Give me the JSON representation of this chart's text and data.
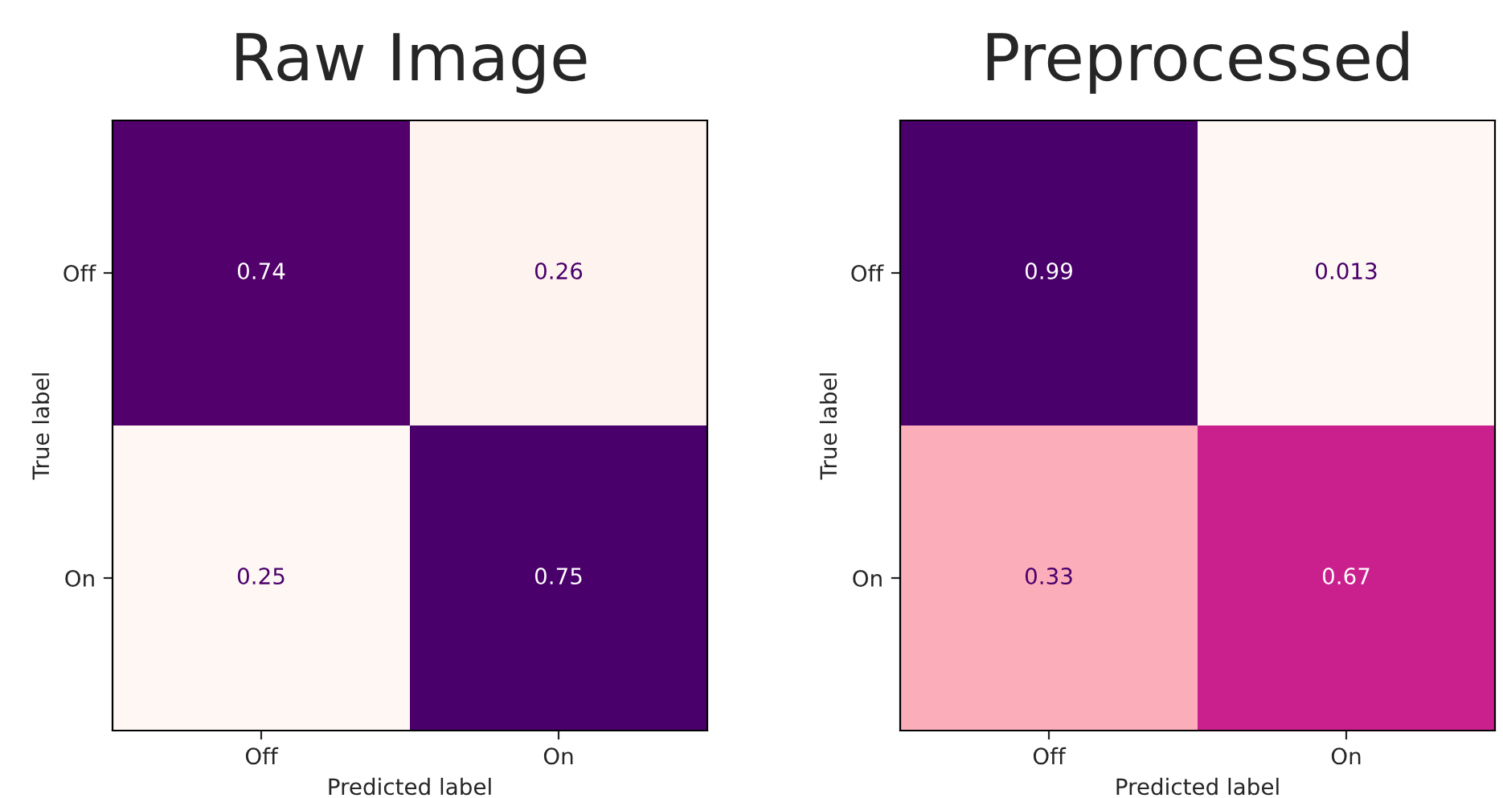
{
  "chart_data": [
    {
      "type": "heatmap",
      "title": "Raw Image",
      "xlabel": "Predicted label",
      "ylabel": "True label",
      "categories": [
        "Off",
        "On"
      ],
      "y_categories": [
        "Off",
        "On"
      ],
      "cells": [
        [
          0.74,
          0.26
        ],
        [
          0.25,
          0.75
        ]
      ],
      "data_labels": true
    },
    {
      "type": "heatmap",
      "title": "Preprocessed",
      "xlabel": "Predicted label",
      "ylabel": "True label",
      "categories": [
        "Off",
        "On"
      ],
      "y_categories": [
        "Off",
        "On"
      ],
      "cells": [
        [
          0.99,
          0.013
        ],
        [
          0.33,
          0.67
        ]
      ],
      "data_labels": true
    }
  ]
}
